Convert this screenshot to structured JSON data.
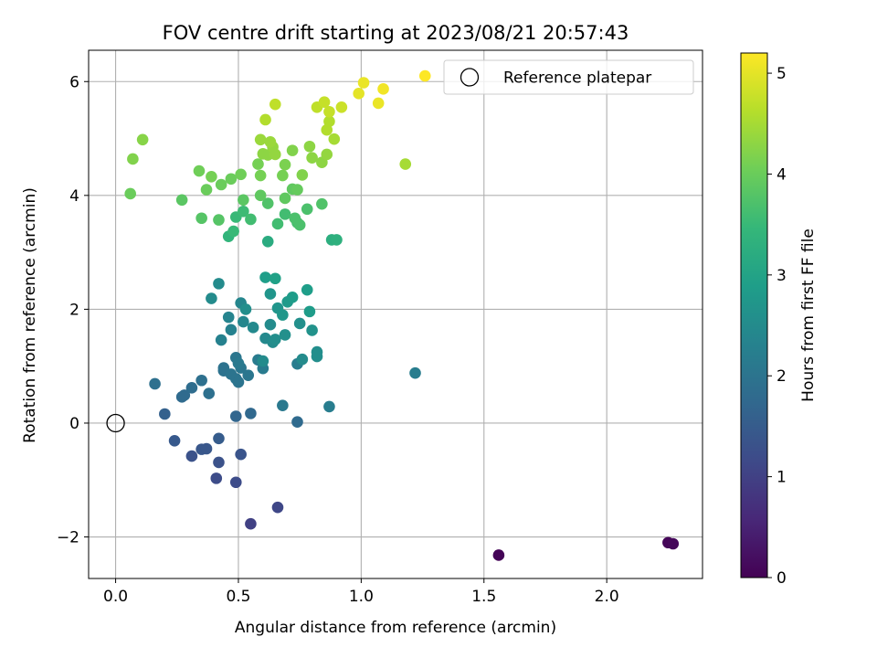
{
  "chart_data": {
    "type": "scatter",
    "title": "FOV centre drift starting at 2023/08/21 20:57:43",
    "xlabel": "Angular distance from reference (arcmin)",
    "ylabel": "Rotation from reference (arcmin)",
    "xlim": [
      -0.11,
      2.39
    ],
    "ylim": [
      -2.73,
      6.55
    ],
    "xticks": [
      0.0,
      0.5,
      1.0,
      1.5,
      2.0
    ],
    "xtick_labels": [
      "0.0",
      "0.5",
      "1.0",
      "1.5",
      "2.0"
    ],
    "yticks": [
      -2,
      0,
      2,
      4,
      6
    ],
    "ytick_labels": [
      "−2",
      "0",
      "2",
      "4",
      "6"
    ],
    "grid": true,
    "legend": {
      "placement": "top-right",
      "label": "Reference platepar"
    },
    "reference_point": {
      "x": 0.0,
      "y": 0.0
    },
    "colorbar": {
      "label": "Hours from first FF file",
      "range": [
        0,
        5.2
      ],
      "ticks": [
        0,
        1,
        2,
        3,
        4,
        5
      ],
      "tick_labels": [
        "0",
        "1",
        "2",
        "3",
        "4",
        "5"
      ],
      "colormap": "viridis",
      "colors": [
        "#440154",
        "#482878",
        "#3e4a89",
        "#31688e",
        "#26828e",
        "#1f9e89",
        "#35b779",
        "#6ece58",
        "#b5de2b",
        "#fde725"
      ]
    },
    "points": [
      [
        1.56,
        -2.32,
        0.05
      ],
      [
        2.25,
        -2.1,
        0.08
      ],
      [
        2.27,
        -2.12,
        0.1
      ],
      [
        0.55,
        -1.77,
        1.0
      ],
      [
        0.66,
        -1.48,
        1.1
      ],
      [
        0.49,
        -1.04,
        1.2
      ],
      [
        0.41,
        -0.97,
        1.2
      ],
      [
        0.42,
        -0.69,
        1.3
      ],
      [
        0.31,
        -0.58,
        1.3
      ],
      [
        0.51,
        -0.55,
        1.35
      ],
      [
        0.35,
        -0.46,
        1.4
      ],
      [
        0.37,
        -0.45,
        1.4
      ],
      [
        0.24,
        -0.31,
        1.45
      ],
      [
        0.42,
        -0.27,
        1.5
      ],
      [
        0.2,
        0.16,
        1.6
      ],
      [
        0.49,
        0.12,
        1.7
      ],
      [
        0.55,
        0.17,
        1.75
      ],
      [
        0.74,
        0.02,
        1.8
      ],
      [
        0.27,
        0.46,
        1.8
      ],
      [
        0.28,
        0.49,
        1.8
      ],
      [
        0.31,
        0.62,
        1.85
      ],
      [
        0.35,
        0.75,
        1.9
      ],
      [
        0.16,
        0.69,
        1.9
      ],
      [
        0.38,
        0.52,
        1.9
      ],
      [
        0.44,
        0.92,
        1.95
      ],
      [
        0.44,
        0.97,
        1.95
      ],
      [
        0.47,
        0.86,
        2.0
      ],
      [
        0.49,
        0.78,
        2.0
      ],
      [
        0.5,
        0.72,
        2.0
      ],
      [
        0.51,
        0.97,
        2.05
      ],
      [
        0.49,
        1.15,
        2.05
      ],
      [
        0.54,
        0.84,
        2.05
      ],
      [
        0.5,
        1.05,
        2.1
      ],
      [
        0.58,
        1.11,
        2.15
      ],
      [
        0.6,
        0.96,
        2.15
      ],
      [
        0.68,
        0.31,
        2.1
      ],
      [
        0.87,
        0.29,
        2.2
      ],
      [
        0.74,
        1.04,
        2.2
      ],
      [
        1.22,
        0.88,
        2.2
      ],
      [
        0.43,
        1.46,
        2.3
      ],
      [
        0.47,
        1.64,
        2.3
      ],
      [
        0.46,
        1.86,
        2.35
      ],
      [
        0.52,
        1.78,
        2.4
      ],
      [
        0.51,
        2.11,
        2.4
      ],
      [
        0.56,
        1.68,
        2.45
      ],
      [
        0.61,
        1.49,
        2.45
      ],
      [
        0.63,
        1.73,
        2.5
      ],
      [
        0.64,
        1.42,
        2.5
      ],
      [
        0.65,
        1.47,
        2.55
      ],
      [
        0.42,
        2.45,
        2.5
      ],
      [
        0.39,
        2.19,
        2.5
      ],
      [
        0.53,
        2.0,
        2.55
      ],
      [
        0.6,
        1.09,
        2.5
      ],
      [
        0.76,
        1.12,
        2.5
      ],
      [
        0.82,
        1.17,
        2.55
      ],
      [
        0.82,
        1.25,
        2.55
      ],
      [
        0.69,
        1.55,
        2.6
      ],
      [
        0.75,
        1.75,
        2.6
      ],
      [
        0.8,
        1.63,
        2.65
      ],
      [
        0.63,
        2.27,
        2.7
      ],
      [
        0.66,
        2.02,
        2.7
      ],
      [
        0.68,
        1.9,
        2.75
      ],
      [
        0.7,
        2.13,
        2.8
      ],
      [
        0.72,
        2.21,
        2.85
      ],
      [
        0.79,
        1.96,
        2.85
      ],
      [
        0.78,
        2.34,
        2.9
      ],
      [
        0.61,
        2.56,
        2.9
      ],
      [
        0.65,
        2.54,
        2.95
      ],
      [
        0.62,
        3.19,
        3.2
      ],
      [
        0.88,
        3.22,
        3.25
      ],
      [
        0.9,
        3.22,
        3.3
      ],
      [
        0.46,
        3.28,
        3.4
      ],
      [
        0.48,
        3.37,
        3.5
      ],
      [
        0.49,
        3.62,
        3.5
      ],
      [
        0.52,
        3.72,
        3.55
      ],
      [
        0.55,
        3.58,
        3.6
      ],
      [
        0.66,
        3.5,
        3.6
      ],
      [
        0.69,
        3.67,
        3.6
      ],
      [
        0.74,
        3.52,
        3.65
      ],
      [
        0.75,
        3.48,
        3.7
      ],
      [
        0.73,
        3.6,
        3.7
      ],
      [
        0.78,
        3.76,
        3.7
      ],
      [
        0.84,
        3.85,
        3.75
      ],
      [
        0.62,
        3.86,
        3.75
      ],
      [
        0.35,
        3.6,
        3.8
      ],
      [
        0.42,
        3.57,
        3.8
      ],
      [
        0.27,
        3.92,
        3.85
      ],
      [
        0.52,
        3.92,
        3.85
      ],
      [
        0.59,
        4.0,
        3.9
      ],
      [
        0.69,
        3.95,
        3.9
      ],
      [
        0.72,
        4.11,
        3.9
      ],
      [
        0.74,
        4.1,
        3.95
      ],
      [
        0.37,
        4.1,
        4.0
      ],
      [
        0.43,
        4.19,
        4.0
      ],
      [
        0.47,
        4.29,
        4.0
      ],
      [
        0.51,
        4.37,
        4.05
      ],
      [
        0.34,
        4.43,
        4.05
      ],
      [
        0.39,
        4.33,
        4.1
      ],
      [
        0.06,
        4.03,
        4.0
      ],
      [
        0.07,
        4.64,
        4.2
      ],
      [
        0.11,
        4.98,
        4.25
      ],
      [
        0.58,
        4.55,
        4.1
      ],
      [
        0.59,
        4.35,
        4.1
      ],
      [
        0.68,
        4.35,
        4.1
      ],
      [
        0.69,
        4.54,
        4.15
      ],
      [
        0.76,
        4.36,
        4.2
      ],
      [
        0.72,
        4.79,
        4.2
      ],
      [
        0.79,
        4.86,
        4.3
      ],
      [
        0.84,
        4.58,
        4.3
      ],
      [
        0.86,
        4.72,
        4.35
      ],
      [
        0.8,
        4.66,
        4.3
      ],
      [
        0.6,
        4.73,
        4.3
      ],
      [
        0.62,
        4.71,
        4.3
      ],
      [
        0.65,
        4.72,
        4.35
      ],
      [
        0.64,
        4.85,
        4.35
      ],
      [
        0.59,
        4.98,
        4.4
      ],
      [
        0.63,
        4.94,
        4.4
      ],
      [
        1.18,
        4.55,
        4.5
      ],
      [
        0.89,
        4.99,
        4.5
      ],
      [
        0.61,
        5.33,
        4.6
      ],
      [
        0.86,
        5.15,
        4.6
      ],
      [
        0.87,
        5.3,
        4.6
      ],
      [
        0.65,
        5.6,
        4.7
      ],
      [
        0.82,
        5.55,
        4.7
      ],
      [
        0.85,
        5.64,
        4.75
      ],
      [
        0.87,
        5.47,
        4.75
      ],
      [
        0.92,
        5.55,
        4.8
      ],
      [
        0.99,
        5.79,
        5.0
      ],
      [
        1.01,
        5.98,
        5.05
      ],
      [
        1.07,
        5.62,
        5.05
      ],
      [
        1.09,
        5.87,
        5.1
      ],
      [
        1.26,
        6.1,
        5.2
      ]
    ]
  }
}
